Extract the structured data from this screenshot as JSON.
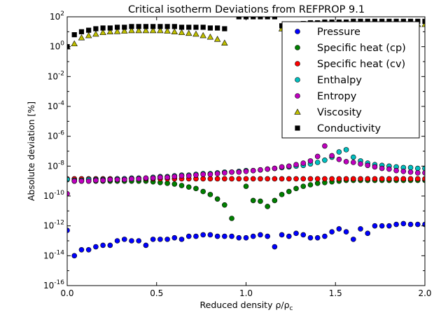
{
  "chart_data": {
    "type": "scatter",
    "title": "Critical isotherm Deviations from REFPROP 9.1",
    "xlabel": "Reduced density ρ/ρ",
    "xlabel_sub": "c",
    "ylabel": "Absolute deviation [%]",
    "xlim": [
      0,
      2
    ],
    "ylim_log10": [
      -16,
      2
    ],
    "y_scale": "log",
    "grid": false,
    "legend_position": "upper-right",
    "x_ticks": [
      {
        "value": 0.0,
        "label": "0.0"
      },
      {
        "value": 0.5,
        "label": "0.5"
      },
      {
        "value": 1.0,
        "label": "1.0"
      },
      {
        "value": 1.5,
        "label": "1.5"
      },
      {
        "value": 2.0,
        "label": "2.0"
      }
    ],
    "y_ticks": [
      {
        "exp": -16,
        "base": "10",
        "sup": "-16"
      },
      {
        "exp": -14,
        "base": "10",
        "sup": "-14"
      },
      {
        "exp": -12,
        "base": "10",
        "sup": "-12"
      },
      {
        "exp": -10,
        "base": "10",
        "sup": "-10"
      },
      {
        "exp": -8,
        "base": "10",
        "sup": "-8"
      },
      {
        "exp": -6,
        "base": "10",
        "sup": "-6"
      },
      {
        "exp": -4,
        "base": "10",
        "sup": "-4"
      },
      {
        "exp": -2,
        "base": "10",
        "sup": "-2"
      },
      {
        "exp": 0,
        "base": "10",
        "sup": "0"
      },
      {
        "exp": 2,
        "base": "10",
        "sup": "2"
      }
    ],
    "x": [
      0.0,
      0.04,
      0.08,
      0.12,
      0.16,
      0.2,
      0.24,
      0.28,
      0.32,
      0.36,
      0.4,
      0.44,
      0.48,
      0.52,
      0.56,
      0.6,
      0.64,
      0.68,
      0.72,
      0.76,
      0.8,
      0.84,
      0.88,
      0.92,
      0.96,
      1.0,
      1.04,
      1.08,
      1.12,
      1.16,
      1.2,
      1.24,
      1.28,
      1.32,
      1.36,
      1.4,
      1.44,
      1.48,
      1.52,
      1.56,
      1.6,
      1.64,
      1.68,
      1.72,
      1.76,
      1.8,
      1.84,
      1.88,
      1.92,
      1.96,
      2.0
    ],
    "series": [
      {
        "name": "Pressure",
        "color": "#0000ff",
        "marker": "circle",
        "log10_values": [
          -12.3,
          -14.0,
          -13.6,
          -13.6,
          -13.4,
          -13.3,
          -13.3,
          -13.0,
          -12.9,
          -13.0,
          -13.0,
          -13.3,
          -12.9,
          -12.9,
          -12.9,
          -12.8,
          -12.9,
          -12.7,
          -12.7,
          -12.6,
          -12.6,
          -12.7,
          -12.7,
          -12.7,
          -12.8,
          -12.8,
          -12.7,
          -12.6,
          -12.7,
          -13.4,
          -12.6,
          -12.7,
          -12.5,
          -12.6,
          -12.8,
          -12.8,
          -12.7,
          -12.4,
          -12.2,
          -12.4,
          -12.9,
          -12.2,
          -12.5,
          -12.0,
          -12.0,
          -12.0,
          -11.9,
          -11.85,
          -11.9,
          -11.9,
          -11.9
        ]
      },
      {
        "name": "Specific heat (cp)",
        "color": "#008000",
        "marker": "circle",
        "log10_values": [
          -8.9,
          -9.0,
          -9.0,
          -9.0,
          -9.0,
          -9.0,
          -9.0,
          -9.0,
          -9.0,
          -9.0,
          -9.0,
          -9.0,
          -9.05,
          -9.1,
          -9.15,
          -9.2,
          -9.3,
          -9.4,
          -9.5,
          -9.7,
          -9.9,
          -10.2,
          -10.6,
          -11.5,
          null,
          -9.35,
          -10.3,
          -10.35,
          -10.7,
          -10.3,
          -9.9,
          -9.7,
          -9.5,
          -9.35,
          -9.25,
          -9.15,
          -9.1,
          -9.05,
          -9.0,
          -8.95,
          -8.95,
          -8.95,
          -8.95,
          -8.95,
          -8.95,
          -8.95,
          -8.95,
          -8.95,
          -8.95,
          -8.95,
          -8.95
        ]
      },
      {
        "name": "Specific heat (cv)",
        "color": "#ff0000",
        "marker": "circle",
        "log10_values": [
          -8.85,
          -8.85,
          -8.85,
          -8.85,
          -8.85,
          -8.85,
          -8.85,
          -8.85,
          -8.85,
          -8.85,
          -8.85,
          -8.85,
          -8.85,
          -8.85,
          -8.85,
          -8.85,
          -8.85,
          -8.85,
          -8.85,
          -8.85,
          -8.85,
          -8.85,
          -8.85,
          -8.85,
          -8.85,
          -8.85,
          -8.85,
          -8.85,
          -8.85,
          -8.85,
          -8.85,
          -8.85,
          -8.85,
          -8.85,
          -8.85,
          -8.85,
          -8.85,
          -8.85,
          -8.85,
          -8.85,
          -8.85,
          -8.85,
          -8.85,
          -8.85,
          -8.85,
          -8.85,
          -8.85,
          -8.85,
          -8.85,
          -8.85,
          -8.85
        ]
      },
      {
        "name": "Enthalpy",
        "color": "#00bfbf",
        "marker": "circle",
        "log10_values": [
          -8.9,
          -8.95,
          -8.95,
          -8.9,
          -8.9,
          -8.9,
          -8.9,
          -8.85,
          -8.85,
          -8.8,
          -8.8,
          -8.8,
          -8.75,
          -8.7,
          -8.7,
          -8.65,
          -8.6,
          -8.6,
          -8.55,
          -8.5,
          -8.5,
          -8.45,
          -8.4,
          -8.4,
          -8.35,
          -8.3,
          -8.3,
          -8.25,
          -8.2,
          -8.15,
          -8.1,
          -8.05,
          -8.0,
          -7.95,
          -7.85,
          -7.75,
          -7.6,
          -7.4,
          -7.05,
          -6.9,
          -7.4,
          -7.65,
          -7.8,
          -7.9,
          -7.95,
          -8.0,
          -8.05,
          -8.1,
          -8.1,
          -8.15,
          -8.15
        ]
      },
      {
        "name": "Entropy",
        "color": "#bf00bf",
        "marker": "circle",
        "log10_values": [
          -9.85,
          -9.0,
          -9.0,
          -9.0,
          -8.95,
          -8.95,
          -8.9,
          -8.9,
          -8.9,
          -8.85,
          -8.85,
          -8.8,
          -8.8,
          -8.75,
          -8.75,
          -8.7,
          -8.65,
          -8.65,
          -8.6,
          -8.55,
          -8.55,
          -8.5,
          -8.45,
          -8.4,
          -8.4,
          -8.35,
          -8.3,
          -8.25,
          -8.2,
          -8.15,
          -8.05,
          -8.0,
          -7.9,
          -7.8,
          -7.65,
          -7.35,
          -6.65,
          -7.3,
          -7.55,
          -7.7,
          -7.75,
          -7.85,
          -7.95,
          -8.05,
          -8.15,
          -8.2,
          -8.3,
          -8.35,
          -8.4,
          -8.45,
          -8.45
        ]
      },
      {
        "name": "Viscosity",
        "color": "#bfbf00",
        "marker": "triangle",
        "log10_values": [
          0.0,
          0.2,
          0.6,
          0.75,
          0.85,
          0.95,
          1.0,
          1.02,
          1.05,
          1.08,
          1.08,
          1.08,
          1.08,
          1.08,
          1.05,
          1.0,
          0.95,
          0.9,
          0.85,
          0.75,
          0.65,
          0.5,
          0.25,
          null,
          null,
          null,
          null,
          null,
          null,
          null,
          1.2,
          1.2,
          1.3,
          1.3,
          1.35,
          1.4,
          1.4,
          1.4,
          1.45,
          1.45,
          1.45,
          1.45,
          1.5,
          1.5,
          1.5,
          1.5,
          1.5,
          1.5,
          1.5,
          1.5,
          1.5
        ]
      },
      {
        "name": "Conductivity",
        "color": "#000000",
        "marker": "square",
        "log10_values": [
          0.0,
          0.8,
          1.0,
          1.1,
          1.2,
          1.25,
          1.25,
          1.3,
          1.3,
          1.35,
          1.35,
          1.35,
          1.35,
          1.35,
          1.35,
          1.35,
          1.3,
          1.3,
          1.3,
          1.3,
          1.25,
          1.25,
          1.2,
          null,
          2.0,
          2.0,
          2.0,
          2.0,
          2.0,
          2.0,
          1.4,
          1.5,
          1.5,
          1.55,
          1.6,
          1.6,
          1.65,
          1.65,
          1.65,
          1.65,
          1.7,
          1.7,
          1.7,
          1.7,
          1.7,
          1.7,
          1.7,
          1.7,
          1.7,
          1.7,
          1.7
        ]
      }
    ]
  }
}
